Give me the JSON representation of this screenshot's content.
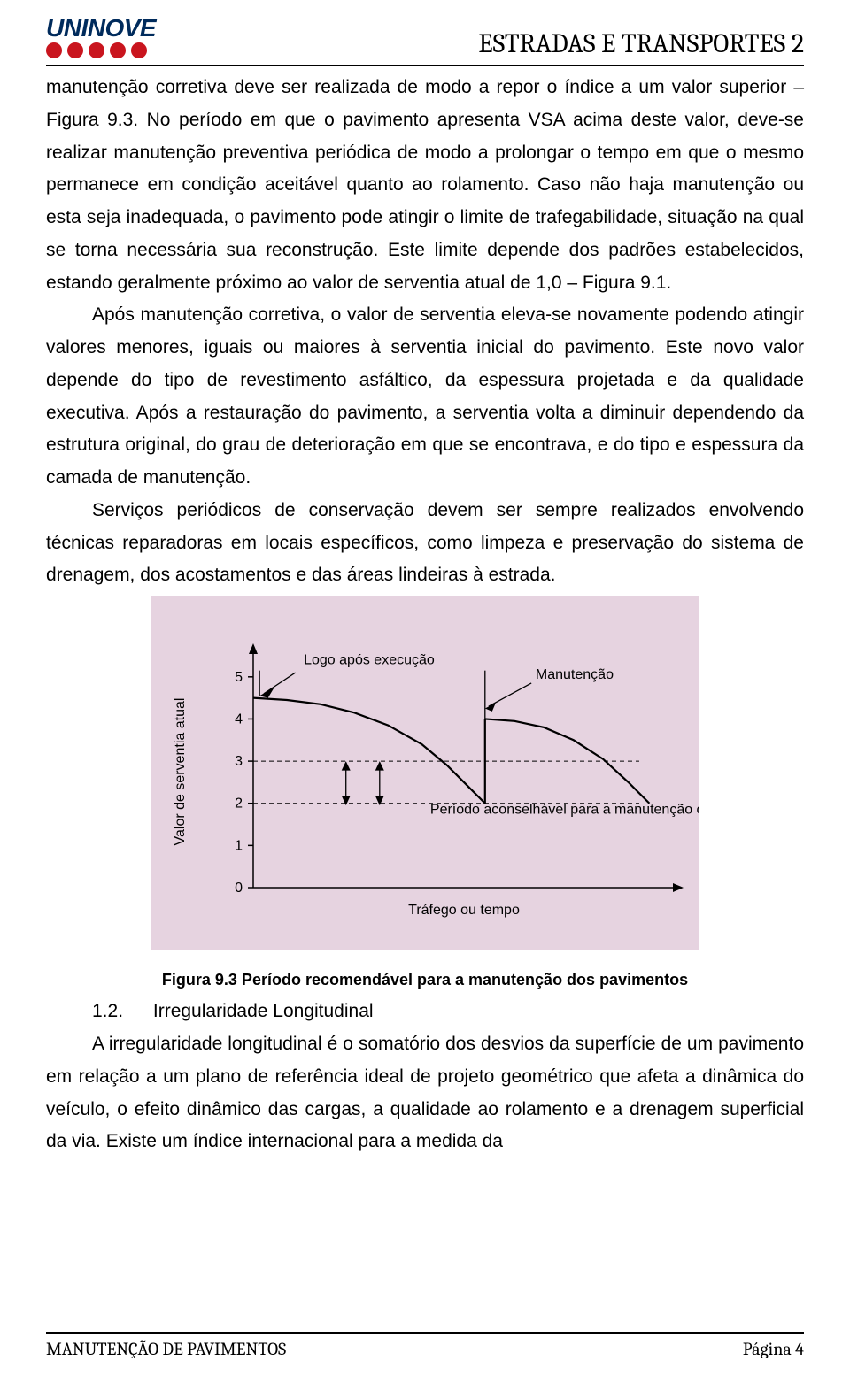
{
  "header": {
    "logo_text": "UNINOVE",
    "logo_dot_color": "#c9151e",
    "logo_text_color": "#002b5c",
    "course_title": "ESTRADAS E TRANSPORTES 2"
  },
  "body": {
    "p1": "manutenção corretiva deve ser realizada de modo a repor o índice a um valor superior – Figura 9.3. No período em que o pavimento apresenta VSA acima deste valor, deve-se realizar manutenção preventiva periódica de modo a prolongar o tempo em que o mesmo permanece em condição aceitável quanto ao rolamento. Caso não haja manutenção ou esta seja inadequada, o pavimento pode atingir o limite de trafegabilidade, situação na qual se torna necessária sua reconstrução. Este limite depende dos padrões estabelecidos, estando geralmente próximo ao valor de serventia atual de 1,0 – Figura 9.1.",
    "p2": "Após manutenção corretiva, o valor de serventia eleva-se novamente podendo atingir valores menores, iguais ou maiores à serventia inicial do pavimento. Este novo valor depende do tipo de revestimento asfáltico, da espessura projetada e da qualidade executiva. Após a restauração do pavimento, a serventia volta a diminuir dependendo da estrutura original, do grau de deterioração em que se encontrava, e do tipo e espessura da camada de manutenção.",
    "p3": "Serviços periódicos de conservação devem ser sempre realizados envolvendo técnicas reparadoras em locais específicos, como limpeza e preservação do sistema de drenagem, dos acostamentos e das áreas lindeiras à estrada.",
    "section_num": "1.2.",
    "section_title": "Irregularidade Longitudinal",
    "p4": "A irregularidade longitudinal é o somatório dos desvios da superfície de um pavimento em relação a um plano de referência ideal de projeto geométrico que afeta a dinâmica do veículo, o efeito dinâmico das cargas, a qualidade ao rolamento e a drenagem superficial da via. Existe um índice internacional para a medida da"
  },
  "figure": {
    "caption": "Figura 9.3  Período recomendável para a manutenção dos pavimentos",
    "bg_color": "#e6d3e0",
    "plot_bg": "#ffffff",
    "y_label": "Valor de serventia atual",
    "x_label": "Tráfego ou tempo",
    "y_ticks": [
      0,
      1,
      2,
      3,
      4,
      5
    ],
    "y_range": [
      0,
      5.5
    ],
    "annotations": {
      "top_left": "Logo após execução",
      "top_right": "Manutenção",
      "band": "Período aconselhável para a manutenção corretiva"
    },
    "dashed_levels": [
      2,
      3
    ],
    "curve1": [
      [
        0.0,
        4.5
      ],
      [
        0.8,
        4.45
      ],
      [
        1.6,
        4.35
      ],
      [
        2.4,
        4.15
      ],
      [
        3.2,
        3.85
      ],
      [
        4.0,
        3.4
      ],
      [
        4.6,
        2.9
      ],
      [
        5.1,
        2.4
      ],
      [
        5.5,
        2.0
      ]
    ],
    "curve2": [
      [
        5.5,
        4.0
      ],
      [
        6.2,
        3.95
      ],
      [
        6.9,
        3.8
      ],
      [
        7.6,
        3.5
      ],
      [
        8.3,
        3.05
      ],
      [
        8.9,
        2.5
      ],
      [
        9.4,
        2.0
      ]
    ],
    "jump_x": 5.5
  },
  "footer": {
    "left": "MANUTENÇÃO DE PAVIMENTOS",
    "right": "Página 4"
  }
}
